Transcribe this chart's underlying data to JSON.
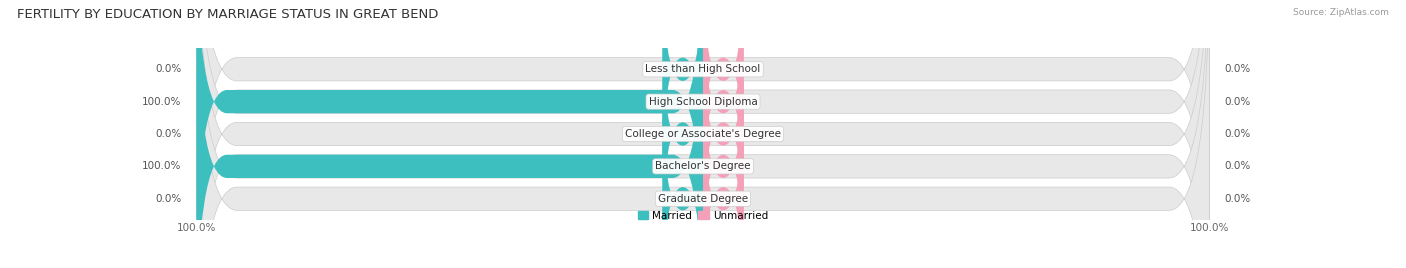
{
  "title": "FERTILITY BY EDUCATION BY MARRIAGE STATUS IN GREAT BEND",
  "source": "Source: ZipAtlas.com",
  "categories": [
    "Less than High School",
    "High School Diploma",
    "College or Associate's Degree",
    "Bachelor's Degree",
    "Graduate Degree"
  ],
  "married_values": [
    0.0,
    100.0,
    0.0,
    100.0,
    0.0
  ],
  "unmarried_values": [
    0.0,
    0.0,
    0.0,
    0.0,
    0.0
  ],
  "married_color": "#3DBFBF",
  "unmarried_color": "#F4A0B8",
  "bar_bg_color": "#E8E8E8",
  "bar_bg_border_color": "#D8D8D8",
  "title_fontsize": 9.5,
  "label_fontsize": 7.5,
  "tick_fontsize": 7.5,
  "legend_married": "Married",
  "legend_unmarried": "Unmarried",
  "max_val": 100.0
}
